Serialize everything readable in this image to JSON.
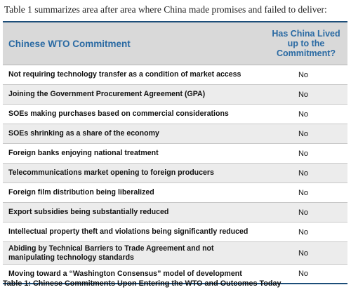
{
  "intro_text": "Table 1 summarizes area after area where China made promises and failed to deliver:",
  "table": {
    "header_left": "Chinese WTO Commitment",
    "header_right": "Has China Lived up to the Commitment?",
    "rows": [
      {
        "commitment": "Not requiring technology transfer as a condition of market access",
        "status": "No"
      },
      {
        "commitment": "Joining the Government Procurement Agreement (GPA)",
        "status": "No"
      },
      {
        "commitment": "SOEs making purchases based on commercial considerations",
        "status": "No"
      },
      {
        "commitment": "SOEs shrinking as a share of the economy",
        "status": "No"
      },
      {
        "commitment": "Foreign banks enjoying national treatment",
        "status": "No"
      },
      {
        "commitment": "Telecommunications market opening to foreign producers",
        "status": "No"
      },
      {
        "commitment": "Foreign film distribution being liberalized",
        "status": "No"
      },
      {
        "commitment": "Export subsidies being substantially reduced",
        "status": "No"
      },
      {
        "commitment": "Intellectual property theft and violations being significantly reduced",
        "status": "No"
      },
      {
        "commitment": "Abiding by Technical Barriers to Trade Agreement and not manipulating technology standards",
        "status": "No"
      },
      {
        "commitment": "Moving toward a “Washington Consensus” model of development",
        "status": "No"
      }
    ]
  },
  "caption": "Table 1: Chinese Commitments Upon Entering the WTO and Outcomes Today",
  "colors": {
    "header_text": "#2a6aa3",
    "rule": "#1d4e79",
    "header_bg": "#d9d9d9",
    "alt_row_bg": "#ececec"
  }
}
